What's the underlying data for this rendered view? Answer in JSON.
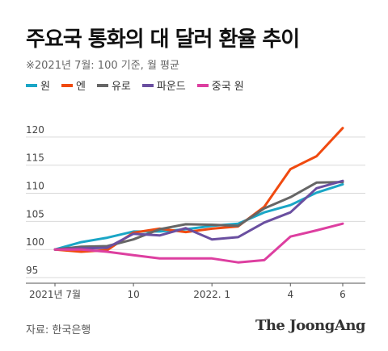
{
  "title": "주요국 통화의 대 달러 환율 추이",
  "subtitle": "※2021년 7월: 100 기준, 월 평균",
  "source": "자료: 한국은행",
  "brand": "The JoongAng",
  "chart_data": {
    "type": "line",
    "x": [
      "2021-07",
      "2021-08",
      "2021-09",
      "2021-10",
      "2021-11",
      "2021-12",
      "2022-01",
      "2022-02",
      "2022-03",
      "2022-04",
      "2022-05",
      "2022-06"
    ],
    "x_tick_labels": [
      {
        "index": 0,
        "label": "2021년 7월"
      },
      {
        "index": 3,
        "label": "10"
      },
      {
        "index": 6,
        "label": "2022. 1"
      },
      {
        "index": 9,
        "label": "4"
      },
      {
        "index": 11,
        "label": "6"
      }
    ],
    "y_ticks": [
      95,
      100,
      105,
      110,
      115,
      120
    ],
    "ylim": [
      94,
      124
    ],
    "grid": true,
    "legend_position": "top-left",
    "series": [
      {
        "name": "원",
        "color": "#1aa6c6",
        "values": [
          100,
          101.3,
          102.1,
          103.2,
          103.2,
          103.6,
          104.2,
          104.6,
          106.6,
          107.9,
          110.1,
          111.6
        ]
      },
      {
        "name": "엔",
        "color": "#f04a10",
        "values": [
          100,
          99.6,
          99.9,
          103.0,
          103.7,
          103.1,
          103.7,
          104.1,
          107.6,
          114.3,
          116.6,
          121.6
        ]
      },
      {
        "name": "유로",
        "color": "#666666",
        "values": [
          100,
          100.5,
          100.6,
          101.8,
          103.6,
          104.5,
          104.4,
          104.2,
          107.3,
          109.3,
          111.9,
          112.0
        ]
      },
      {
        "name": "파운드",
        "color": "#6a4fa0",
        "values": [
          100,
          100.2,
          100.3,
          102.8,
          102.5,
          103.8,
          101.8,
          102.2,
          104.8,
          106.6,
          110.9,
          112.2
        ]
      },
      {
        "name": "중국 원",
        "color": "#dd3fa0",
        "values": [
          100,
          100.0,
          99.6,
          99.0,
          98.4,
          98.4,
          98.4,
          97.7,
          98.1,
          102.3,
          103.4,
          104.6
        ]
      }
    ]
  }
}
